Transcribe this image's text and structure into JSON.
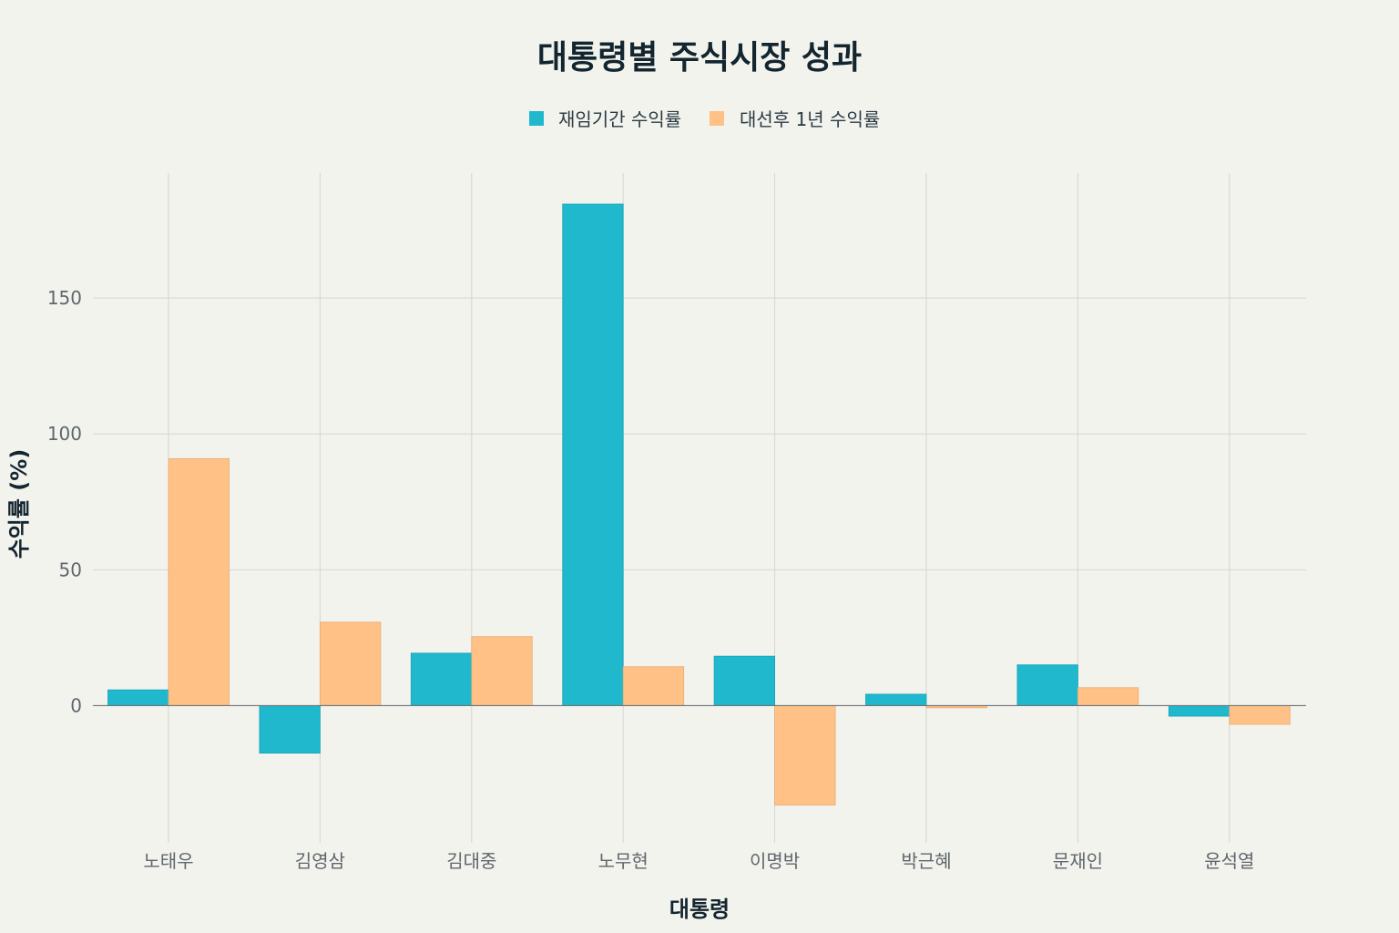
{
  "chart_data": {
    "type": "bar",
    "title": "대통령별 주식시장 성과",
    "xlabel": "대통령",
    "ylabel": "수익률 (%)",
    "categories": [
      "노태우",
      "김영삼",
      "김대중",
      "노무현",
      "이명박",
      "박근혜",
      "문재인",
      "윤석열"
    ],
    "series": [
      {
        "name": "재임기간 수익률",
        "color": "#1fb8cd",
        "values": [
          5.8,
          -17.5,
          19.3,
          184.6,
          18.2,
          4.2,
          15.0,
          -3.9
        ]
      },
      {
        "name": "대선후 1년 수익률",
        "color": "#ffc185",
        "values": [
          90.9,
          30.7,
          25.4,
          14.3,
          -36.6,
          -0.8,
          6.6,
          -6.9
        ]
      }
    ],
    "ylim": [
      -50.5,
      196
    ],
    "yticks": [
      0,
      50,
      100,
      150
    ],
    "grid": true,
    "legend_position": "top-center"
  }
}
